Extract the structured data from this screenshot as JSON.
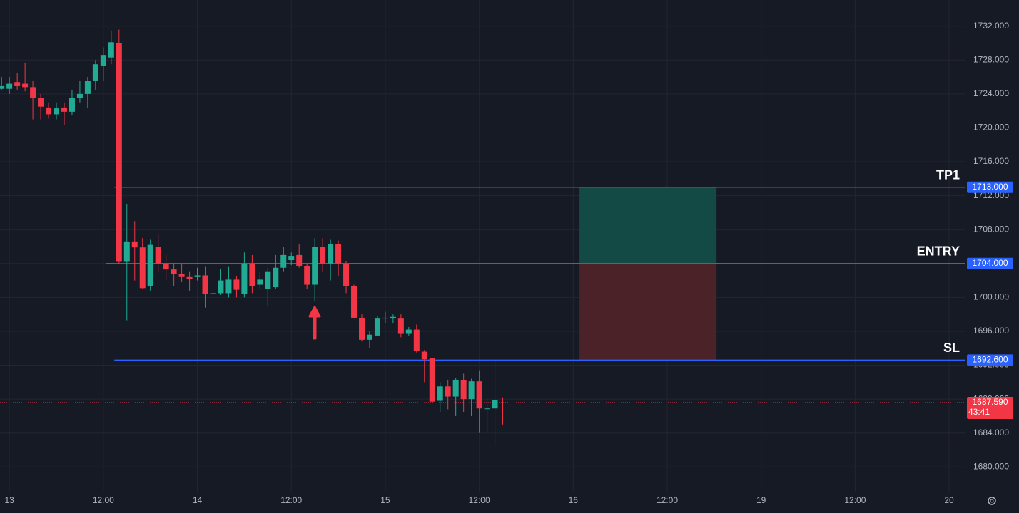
{
  "chart_data": {
    "type": "candlestick",
    "x": [
      -1,
      0,
      1,
      2,
      3,
      4,
      5,
      6,
      7,
      8,
      9,
      10,
      11,
      12,
      13,
      14,
      15,
      16,
      17,
      18,
      19,
      20,
      21,
      22,
      23,
      24,
      25,
      26,
      27,
      28,
      29,
      30,
      31,
      32,
      33,
      34,
      35,
      36,
      37,
      38,
      39,
      40,
      41,
      42,
      43,
      44,
      45,
      46,
      47,
      48,
      49,
      50,
      51,
      52,
      53,
      54,
      55,
      56,
      57,
      58,
      59,
      60,
      61,
      62,
      63
    ],
    "open": [
      1724.6,
      1724.6,
      1725.4,
      1725.2,
      1724.8,
      1723.5,
      1722.4,
      1721.6,
      1722.4,
      1721.9,
      1723.5,
      1724,
      1725.5,
      1727.3,
      1728.3,
      1730,
      1704.2,
      1706.6,
      1705.9,
      1701.3,
      1706,
      1704,
      1703.3,
      1702.8,
      1702.4,
      1702.4,
      1702.6,
      1700.4,
      1700.5,
      1700.5,
      1702.1,
      1700.4,
      1704,
      1701.5,
      1701,
      1701.2,
      1703.5,
      1704.4,
      1705,
      1703.7,
      1701.5,
      1706,
      1704,
      1706.3,
      1704,
      1701.3,
      1697.6,
      1695,
      1695.5,
      1697.5,
      1697.5,
      1697.5,
      1695.7,
      1696.2,
      1693.6,
      1692.8,
      1687.8,
      1689.5,
      1688.3,
      1690.2,
      1688,
      1690.1,
      1686.9,
      1686.9,
      1687.6
    ],
    "high": [
      1726,
      1726,
      1726.5,
      1727.7,
      1725.5,
      1724,
      1723,
      1723,
      1723,
      1724.5,
      1725.5,
      1726,
      1728,
      1729.5,
      1731.5,
      1731.6,
      1711,
      1709,
      1707,
      1706.8,
      1707.5,
      1705,
      1704,
      1704,
      1703,
      1703.5,
      1703.6,
      1701,
      1703.4,
      1703.6,
      1702.5,
      1705.3,
      1705,
      1703,
      1703.5,
      1705,
      1706,
      1705.3,
      1706.3,
      1704,
      1707,
      1707,
      1706.8,
      1706.7,
      1704.3,
      1701.5,
      1698,
      1696,
      1697.8,
      1698.3,
      1698,
      1698,
      1696.5,
      1696.8,
      1693.8,
      1692.8,
      1690,
      1690.2,
      1690.5,
      1691,
      1690.4,
      1691.4,
      1688,
      1692.6,
      1688.2
    ],
    "low": [
      1724.5,
      1724,
      1724.5,
      1724.3,
      1721,
      1721,
      1721.1,
      1721,
      1720.3,
      1721.5,
      1723,
      1722.3,
      1724.5,
      1725.5,
      1727.5,
      1704,
      1697.3,
      1702,
      1701,
      1700.8,
      1703,
      1702,
      1701.3,
      1701.8,
      1700.8,
      1702,
      1698.8,
      1697.6,
      1700.3,
      1700,
      1700,
      1700,
      1700.5,
      1701,
      1699,
      1701,
      1703,
      1703.8,
      1703.5,
      1701,
      1699.5,
      1703,
      1702,
      1702.5,
      1700.5,
      1697.5,
      1694.8,
      1694,
      1695.5,
      1697,
      1697,
      1695.3,
      1695.5,
      1693.5,
      1690,
      1687.5,
      1686.5,
      1686.8,
      1686,
      1686.5,
      1686,
      1684,
      1684,
      1682.5,
      1685
    ],
    "close": [
      1725,
      1725.2,
      1725,
      1724.8,
      1723.5,
      1722.5,
      1721.6,
      1722.3,
      1721.9,
      1723.5,
      1724,
      1725.5,
      1727.5,
      1728.6,
      1730.1,
      1704.2,
      1706.6,
      1705.9,
      1701.1,
      1706.2,
      1704,
      1703.3,
      1702.8,
      1702.4,
      1702.2,
      1702.6,
      1700.4,
      1700.5,
      1702,
      1702.1,
      1700.9,
      1704,
      1701.3,
      1702.1,
      1703,
      1703.5,
      1705,
      1704.9,
      1703.7,
      1701.5,
      1706,
      1704,
      1706.3,
      1704,
      1701.3,
      1697.6,
      1695,
      1695.6,
      1697.5,
      1697.6,
      1697.7,
      1695.7,
      1696.2,
      1693.7,
      1692.7,
      1687.7,
      1689.5,
      1688.3,
      1690.2,
      1688,
      1690.1,
      1686.9,
      1686.9,
      1687.9,
      1687.59
    ],
    "up_color": "#22ab94",
    "down_color": "#f23645",
    "xlim": [
      -1.2,
      122
    ],
    "ylim": [
      1677,
      1735
    ],
    "xticks": [
      {
        "value": 0,
        "label": "13"
      },
      {
        "value": 12,
        "label": "12:00"
      },
      {
        "value": 24,
        "label": "14"
      },
      {
        "value": 36,
        "label": "12:00"
      },
      {
        "value": 48,
        "label": "15"
      },
      {
        "value": 60,
        "label": "12:00"
      },
      {
        "value": 72,
        "label": "16"
      },
      {
        "value": 84,
        "label": "12:00"
      },
      {
        "value": 96,
        "label": "19"
      },
      {
        "value": 108,
        "label": "12:00"
      },
      {
        "value": 120,
        "label": "20"
      }
    ],
    "yticks": [
      {
        "value": 1680,
        "label": "1680.000"
      },
      {
        "value": 1684,
        "label": "1684.000"
      },
      {
        "value": 1688,
        "label": "1688.000"
      },
      {
        "value": 1692,
        "label": "1692.000"
      },
      {
        "value": 1696,
        "label": "1696.000"
      },
      {
        "value": 1700,
        "label": "1700.000"
      },
      {
        "value": 1704,
        "label": "1704.000"
      },
      {
        "value": 1708,
        "label": "1708.000"
      },
      {
        "value": 1712,
        "label": "1712.000"
      },
      {
        "value": 1716,
        "label": "1716.000"
      },
      {
        "value": 1720,
        "label": "1720.000"
      },
      {
        "value": 1724,
        "label": "1724.000"
      },
      {
        "value": 1728,
        "label": "1728.000"
      },
      {
        "value": 1732,
        "label": "1732.000"
      }
    ],
    "grid": true,
    "levels": [
      {
        "name": "TP1",
        "value": 1713,
        "label": "1713.000",
        "from": 13.4
      },
      {
        "name": "ENTRY",
        "value": 1704,
        "label": "1704.000",
        "from": 12.3
      },
      {
        "name": "SL",
        "value": 1692.6,
        "label": "1692.600",
        "from": 13.4
      }
    ],
    "level_color": "#2962ff",
    "zone_x": [
      72.8,
      90.3
    ],
    "profit_color": "#134a45",
    "loss_color": "#4a2228",
    "last_price": {
      "value": 1687.59,
      "label": "1687.590",
      "countdown": "43:41"
    }
  }
}
